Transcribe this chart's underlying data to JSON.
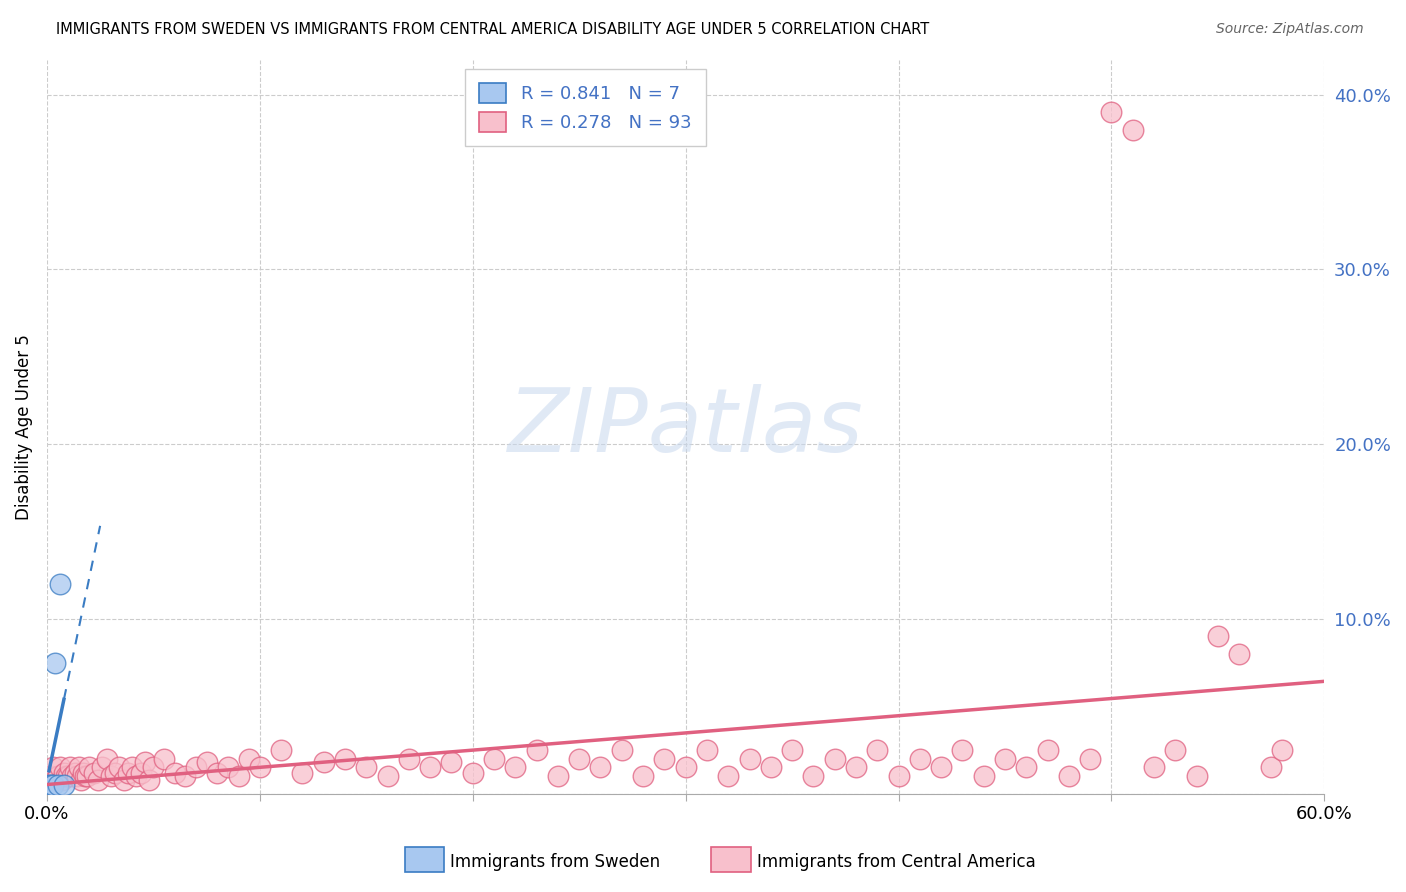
{
  "title": "IMMIGRANTS FROM SWEDEN VS IMMIGRANTS FROM CENTRAL AMERICA DISABILITY AGE UNDER 5 CORRELATION CHART",
  "source": "Source: ZipAtlas.com",
  "ylabel": "Disability Age Under 5",
  "xlim": [
    0.0,
    0.6
  ],
  "ylim": [
    0.0,
    0.42
  ],
  "ytick_vals": [
    0.0,
    0.1,
    0.2,
    0.3,
    0.4
  ],
  "ytick_labels": [
    "",
    "10.0%",
    "20.0%",
    "30.0%",
    "40.0%"
  ],
  "sweden_color": "#A8C8F0",
  "sweden_edge_color": "#3A7CC3",
  "ca_color": "#F8C0CC",
  "ca_edge_color": "#E06080",
  "sweden_R": "0.841",
  "sweden_N": "7",
  "ca_R": "0.278",
  "ca_N": "93",
  "watermark": "ZIPatlas",
  "bg_color": "#ffffff",
  "grid_color": "#cccccc",
  "tick_label_color": "#4472C4",
  "legend_text_color": "#4472C4",
  "sweden_x": [
    0.001,
    0.002,
    0.003,
    0.004,
    0.005,
    0.006,
    0.008
  ],
  "sweden_y": [
    0.005,
    0.005,
    0.005,
    0.075,
    0.005,
    0.12,
    0.005
  ],
  "ca_x": [
    0.001,
    0.002,
    0.003,
    0.004,
    0.005,
    0.006,
    0.007,
    0.008,
    0.009,
    0.01,
    0.011,
    0.012,
    0.013,
    0.014,
    0.015,
    0.016,
    0.017,
    0.018,
    0.019,
    0.02,
    0.022,
    0.024,
    0.026,
    0.028,
    0.03,
    0.032,
    0.034,
    0.036,
    0.038,
    0.04,
    0.042,
    0.044,
    0.046,
    0.048,
    0.05,
    0.055,
    0.06,
    0.065,
    0.07,
    0.075,
    0.08,
    0.085,
    0.09,
    0.095,
    0.1,
    0.11,
    0.12,
    0.13,
    0.14,
    0.15,
    0.16,
    0.17,
    0.18,
    0.19,
    0.2,
    0.21,
    0.22,
    0.23,
    0.24,
    0.25,
    0.26,
    0.27,
    0.28,
    0.29,
    0.3,
    0.31,
    0.32,
    0.33,
    0.34,
    0.35,
    0.36,
    0.37,
    0.38,
    0.39,
    0.4,
    0.41,
    0.42,
    0.43,
    0.44,
    0.45,
    0.46,
    0.47,
    0.48,
    0.49,
    0.5,
    0.51,
    0.52,
    0.53,
    0.54,
    0.55,
    0.56,
    0.575,
    0.58
  ],
  "ca_y": [
    0.01,
    0.01,
    0.015,
    0.008,
    0.01,
    0.015,
    0.008,
    0.012,
    0.01,
    0.01,
    0.015,
    0.01,
    0.012,
    0.01,
    0.015,
    0.008,
    0.012,
    0.01,
    0.01,
    0.015,
    0.012,
    0.008,
    0.015,
    0.02,
    0.01,
    0.012,
    0.015,
    0.008,
    0.012,
    0.015,
    0.01,
    0.012,
    0.018,
    0.008,
    0.015,
    0.02,
    0.012,
    0.01,
    0.015,
    0.018,
    0.012,
    0.015,
    0.01,
    0.02,
    0.015,
    0.025,
    0.012,
    0.018,
    0.02,
    0.015,
    0.01,
    0.02,
    0.015,
    0.018,
    0.012,
    0.02,
    0.015,
    0.025,
    0.01,
    0.02,
    0.015,
    0.025,
    0.01,
    0.02,
    0.015,
    0.025,
    0.01,
    0.02,
    0.015,
    0.025,
    0.01,
    0.02,
    0.015,
    0.025,
    0.01,
    0.02,
    0.015,
    0.025,
    0.01,
    0.02,
    0.015,
    0.025,
    0.01,
    0.02,
    0.39,
    0.38,
    0.015,
    0.025,
    0.01,
    0.09,
    0.08,
    0.015,
    0.025
  ]
}
